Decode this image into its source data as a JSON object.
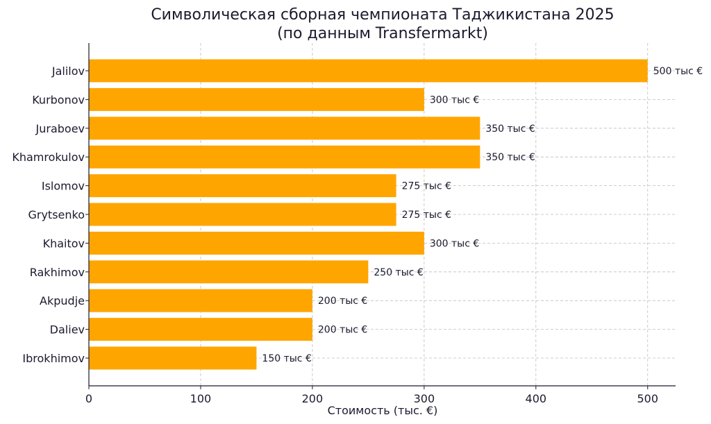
{
  "chart_data": {
    "type": "bar",
    "orientation": "horizontal",
    "title": "Символическая сборная чемпионата Таджикистана 2025",
    "subtitle": "(по данным Transfermarkt)",
    "xlabel": "Стоимость (тыс. €)",
    "ylabel": "",
    "xlim": [
      0,
      525
    ],
    "xticks": [
      0,
      100,
      200,
      300,
      400,
      500
    ],
    "grid": true,
    "bar_color": "#FFA500",
    "categories": [
      "Jalilov",
      "Kurbonov",
      "Juraboev",
      "Khamrokulov",
      "Islomov",
      "Grytsenko",
      "Khaitov",
      "Rakhimov",
      "Akpudje",
      "Daliev",
      "Ibrokhimov"
    ],
    "values": [
      500,
      300,
      350,
      350,
      275,
      275,
      300,
      250,
      200,
      200,
      150
    ],
    "data_labels": [
      "500 тыс €",
      "300 тыс €",
      "350 тыс €",
      "350 тыс €",
      "275 тыс €",
      "275 тыс €",
      "300 тыс €",
      "250 тыс €",
      "200 тыс €",
      "200 тыс €",
      "150 тыс €"
    ]
  }
}
